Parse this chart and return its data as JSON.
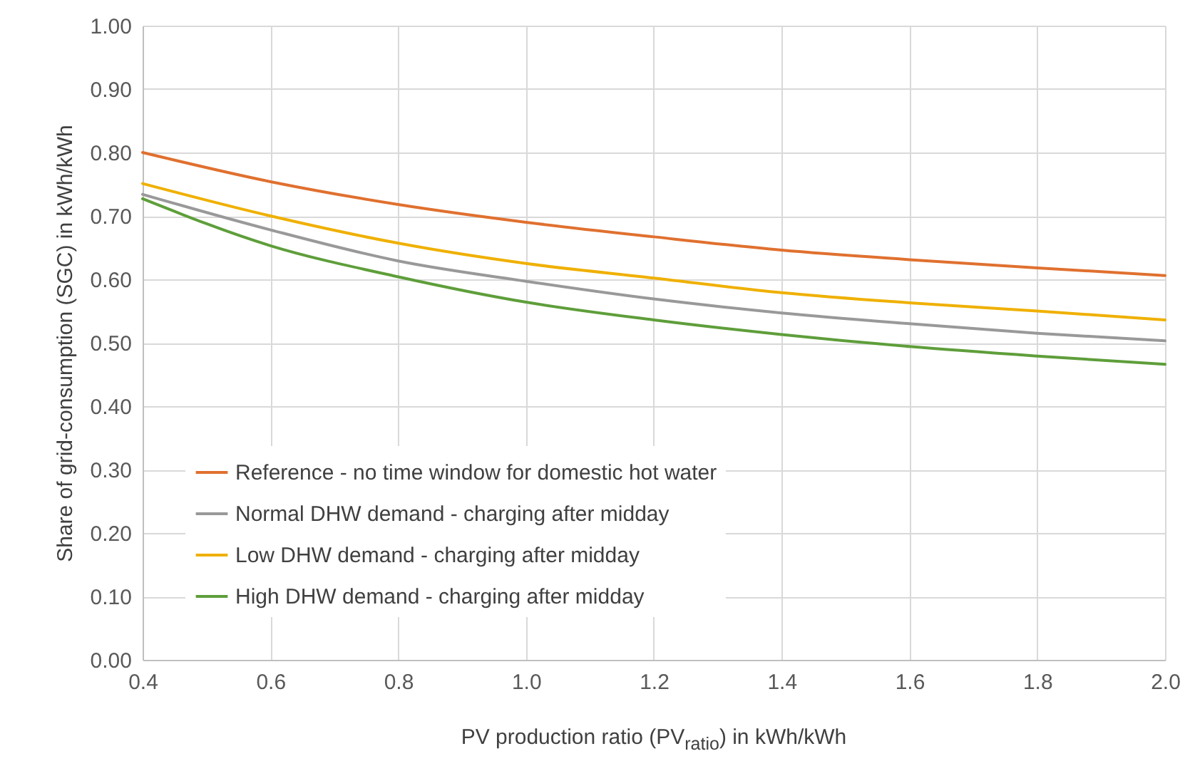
{
  "chart_data": {
    "type": "line",
    "xlabel": "PV production ratio (PV$_{ratio}$) in kWh/kWh",
    "ylabel": "Share of grid-consumption (SGC) in kWh/kWh",
    "x": [
      0.4,
      0.6,
      0.8,
      1.0,
      1.2,
      1.4,
      1.6,
      1.8,
      2.0
    ],
    "series": [
      {
        "name": "Reference - no time window for domestic hot water",
        "color": "#e0702f",
        "values": [
          0.8,
          0.754,
          0.718,
          0.69,
          0.667,
          0.646,
          0.631,
          0.618,
          0.606
        ]
      },
      {
        "name": "Normal DHW demand - charging after midday",
        "color": "#999999",
        "values": [
          0.734,
          0.678,
          0.629,
          0.597,
          0.569,
          0.547,
          0.53,
          0.515,
          0.503
        ]
      },
      {
        "name": "Low DHW demand - charging after midday",
        "color": "#efb000",
        "values": [
          0.751,
          0.7,
          0.657,
          0.625,
          0.602,
          0.579,
          0.563,
          0.55,
          0.536
        ]
      },
      {
        "name": "High DHW demand - charging after midday",
        "color": "#5e9e3a",
        "values": [
          0.727,
          0.653,
          0.604,
          0.564,
          0.536,
          0.513,
          0.494,
          0.479,
          0.466
        ]
      }
    ],
    "xlim": [
      0.4,
      2.0
    ],
    "xticks": [
      0.4,
      0.6,
      0.8,
      {
        "value": 1.0,
        "label": "1.0"
      },
      1.2,
      1.4,
      1.6,
      1.8,
      {
        "value": 2.0,
        "label": "2.0"
      }
    ],
    "ylim": [
      0,
      1
    ],
    "yticks": [
      {
        "value": 0,
        "label": "0.00"
      },
      {
        "value": 0.1,
        "label": "0.10"
      },
      {
        "value": 0.2,
        "label": "0.20"
      },
      {
        "value": 0.3,
        "label": "0.30"
      },
      {
        "value": 0.4,
        "label": "0.40"
      },
      {
        "value": 0.5,
        "label": "0.50"
      },
      {
        "value": 0.6,
        "label": "0.60"
      },
      {
        "value": 0.7,
        "label": "0.70"
      },
      {
        "value": 0.8,
        "label": "0.80"
      },
      {
        "value": 0.9,
        "label": "0.90"
      },
      {
        "value": 1,
        "label": "1.00"
      }
    ],
    "grid": true,
    "legend": "bottom left",
    "marker": "none",
    "line_style": "solid"
  }
}
